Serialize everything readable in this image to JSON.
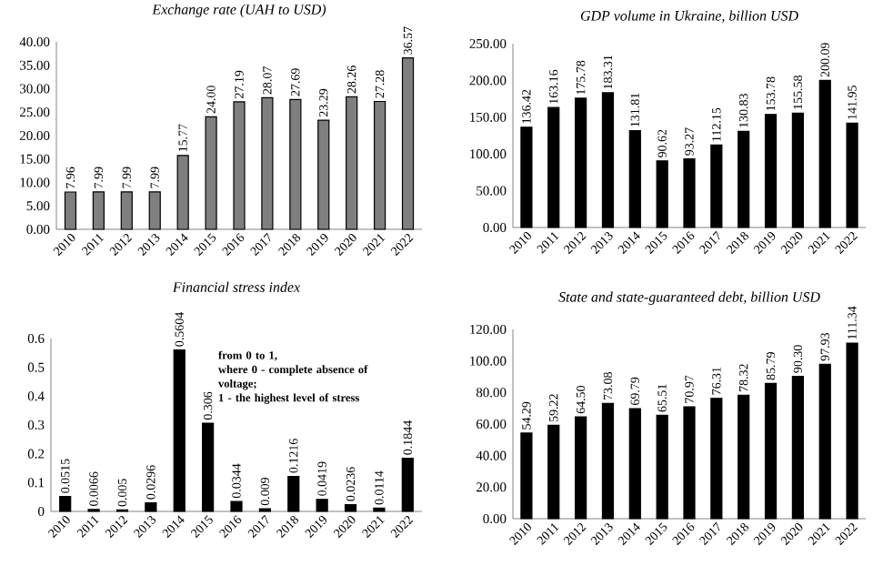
{
  "chart_data": [
    {
      "type": "bar",
      "title": "Exchange rate (UAH to USD)",
      "categories": [
        "2010",
        "2011",
        "2012",
        "2013",
        "2014",
        "2015",
        "2016",
        "2017",
        "2018",
        "2019",
        "2020",
        "2021",
        "2022"
      ],
      "values": [
        7.96,
        7.99,
        7.99,
        7.99,
        15.77,
        24.0,
        27.19,
        28.07,
        27.69,
        23.29,
        28.26,
        27.28,
        36.57
      ],
      "value_labels": [
        "7.96",
        "7.99",
        "7.99",
        "7.99",
        "15.77",
        "24.00",
        "27.19",
        "28.07",
        "27.69",
        "23.29",
        "28.26",
        "27.28",
        "36.57"
      ],
      "color": "#7f7f7f",
      "ylim": [
        0,
        40
      ],
      "yticks": [
        {
          "value": 0,
          "label": "0.00"
        },
        {
          "value": 5,
          "label": "5.00"
        },
        {
          "value": 10,
          "label": "10.00"
        },
        {
          "value": 15,
          "label": "15.00"
        },
        {
          "value": 20,
          "label": "20.00"
        },
        {
          "value": 25,
          "label": "25.00"
        },
        {
          "value": 30,
          "label": "30.00"
        },
        {
          "value": 35,
          "label": "35.00"
        },
        {
          "value": 40,
          "label": "40.00"
        }
      ]
    },
    {
      "type": "bar",
      "title": "GDP volume in Ukraine, billion USD",
      "categories": [
        "2010",
        "2011",
        "2012",
        "2013",
        "2014",
        "2015",
        "2016",
        "2017",
        "2018",
        "2019",
        "2020",
        "2021",
        "2022"
      ],
      "values": [
        136.42,
        163.16,
        175.78,
        183.31,
        131.81,
        90.62,
        93.27,
        112.15,
        130.83,
        153.78,
        155.58,
        200.09,
        141.95
      ],
      "value_labels": [
        "136.42",
        "163.16",
        "175.78",
        "183.31",
        "131.81",
        "90.62",
        "93.27",
        "112.15",
        "130.83",
        "153.78",
        "155.58",
        "200.09",
        "141.95"
      ],
      "color": "#000000",
      "ylim": [
        0,
        250
      ],
      "yticks": [
        {
          "value": 0,
          "label": "0.00"
        },
        {
          "value": 50,
          "label": "50.00"
        },
        {
          "value": 100,
          "label": "100.00"
        },
        {
          "value": 150,
          "label": "150.00"
        },
        {
          "value": 200,
          "label": "200.00"
        },
        {
          "value": 250,
          "label": "250.00"
        }
      ]
    },
    {
      "type": "bar",
      "title": "Financial stress index",
      "categories": [
        "2010",
        "2011",
        "2012",
        "2013",
        "2014",
        "2015",
        "2016",
        "2017",
        "2018",
        "2019",
        "2020",
        "2021",
        "2022"
      ],
      "values": [
        0.0515,
        0.0066,
        0.005,
        0.0296,
        0.5604,
        0.306,
        0.0344,
        0.009,
        0.1216,
        0.0419,
        0.0236,
        0.0114,
        0.1844
      ],
      "value_labels": [
        "0.0515",
        "0.0066",
        "0.005",
        "0.0296",
        "0.5604",
        "0.306",
        "0.0344",
        "0.009",
        "0.1216",
        "0.0419",
        "0.0236",
        "0.0114",
        "0.1844"
      ],
      "color": "#000000",
      "ylim": [
        0,
        0.6
      ],
      "yticks": [
        0,
        0.1,
        0.2,
        0.3,
        0.4,
        0.5,
        0.6
      ],
      "annotations": [
        "from 0 to 1,",
        "where 0 - complete absence of voltage;",
        "1 - the highest level of stress"
      ]
    },
    {
      "type": "bar",
      "title": "State and state-guaranteed debt, billion USD",
      "categories": [
        "2010",
        "2011",
        "2012",
        "2013",
        "2014",
        "2015",
        "2016",
        "2017",
        "2018",
        "2019",
        "2020",
        "2021",
        "2022"
      ],
      "values": [
        54.29,
        59.22,
        64.5,
        73.08,
        69.79,
        65.51,
        70.97,
        76.31,
        78.32,
        85.79,
        90.3,
        97.93,
        111.34
      ],
      "value_labels": [
        "54.29",
        "59.22",
        "64.50",
        "73.08",
        "69.79",
        "65.51",
        "70.97",
        "76.31",
        "78.32",
        "85.79",
        "90.30",
        "97.93",
        "111.34"
      ],
      "color": "#000000",
      "ylim": [
        0,
        120
      ],
      "yticks": [
        {
          "value": 0,
          "label": "0.00"
        },
        {
          "value": 20,
          "label": "20.00"
        },
        {
          "value": 40,
          "label": "40.00"
        },
        {
          "value": 60,
          "label": "60.00"
        },
        {
          "value": 80,
          "label": "80.00"
        },
        {
          "value": 100,
          "label": "100.00"
        },
        {
          "value": 120,
          "label": "120.00"
        }
      ]
    }
  ]
}
